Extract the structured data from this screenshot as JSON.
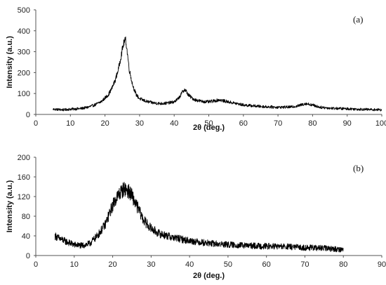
{
  "chart_data": [
    {
      "type": "line",
      "panel_label": "(a)",
      "xlabel": "2θ (deg.)",
      "ylabel": "Intensity (a.u.)",
      "xlim": [
        0,
        100
      ],
      "ylim": [
        0,
        500
      ],
      "xticks": [
        0,
        10,
        20,
        30,
        40,
        50,
        60,
        70,
        80,
        90,
        100
      ],
      "yticks": [
        0,
        100,
        200,
        300,
        400,
        500
      ],
      "grid": false,
      "legend": "none",
      "line_color": "#000000",
      "noise_amplitude": 9,
      "series": [
        {
          "x": [
            5,
            8,
            10,
            13,
            15,
            17,
            19,
            21,
            22,
            23,
            24,
            25,
            25.5,
            26,
            26.5,
            27,
            28,
            29,
            30,
            32,
            34,
            36,
            38,
            40,
            41,
            42,
            42.5,
            43,
            43.5,
            44,
            45,
            46,
            48,
            50,
            52,
            53,
            55,
            58,
            60,
            65,
            70,
            74,
            76,
            78,
            80,
            82,
            85,
            90,
            95,
            100
          ],
          "y": [
            25,
            22,
            25,
            28,
            34,
            45,
            62,
            95,
            125,
            165,
            225,
            310,
            345,
            355,
            290,
            215,
            140,
            95,
            75,
            62,
            55,
            52,
            54,
            60,
            72,
            95,
            112,
            118,
            110,
            95,
            80,
            70,
            62,
            60,
            66,
            70,
            62,
            52,
            45,
            38,
            34,
            36,
            42,
            52,
            45,
            35,
            30,
            27,
            24,
            22
          ]
        }
      ]
    },
    {
      "type": "line",
      "panel_label": "(b)",
      "xlabel": "2θ (deg.)",
      "ylabel": "Intensity (a.u.)",
      "xlim": [
        0,
        90
      ],
      "ylim": [
        0,
        200
      ],
      "xticks": [
        0,
        10,
        20,
        30,
        40,
        50,
        60,
        70,
        80,
        90
      ],
      "yticks": [
        0,
        40,
        80,
        120,
        160,
        200
      ],
      "grid": false,
      "legend": "none",
      "line_color": "#000000",
      "noise_amplitude": 8,
      "series": [
        {
          "x": [
            5,
            6,
            8,
            10,
            12,
            14,
            16,
            18,
            19,
            20,
            21,
            22,
            23,
            24,
            25,
            26,
            27,
            28,
            30,
            32,
            35,
            38,
            40,
            45,
            50,
            55,
            60,
            65,
            70,
            75,
            80
          ],
          "y": [
            40,
            35,
            28,
            22,
            20,
            24,
            40,
            62,
            82,
            102,
            118,
            128,
            136,
            132,
            122,
            105,
            90,
            72,
            55,
            45,
            38,
            33,
            30,
            25,
            22,
            20,
            19,
            18,
            16,
            15,
            12
          ]
        }
      ]
    }
  ]
}
